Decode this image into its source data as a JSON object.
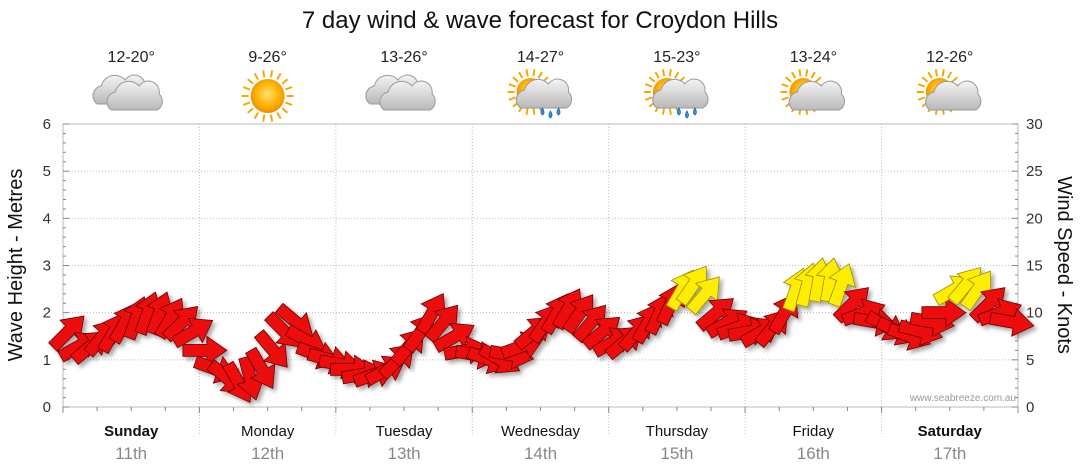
{
  "chart_data": {
    "type": "line",
    "title": "7 day wind & wave forecast for Croydon Hills",
    "y_left_label": "Wave Height - Metres",
    "y_right_label": "Wind Speed - Knots",
    "y_left_range": [
      0,
      6
    ],
    "y_right_range": [
      0,
      30
    ],
    "y_left_ticks": [
      "0",
      "1",
      "2",
      "3",
      "4",
      "5",
      "6"
    ],
    "y_right_ticks": [
      "0",
      "5",
      "10",
      "15",
      "20",
      "25",
      "30"
    ],
    "grid": true,
    "credit": "www.seabreeze.com.au",
    "days": [
      {
        "name": "Sunday",
        "date": "11th",
        "temp": "12-20°",
        "icon": "cloudy-icon",
        "bold": true
      },
      {
        "name": "Monday",
        "date": "12th",
        "temp": "9-26°",
        "icon": "sunny-icon",
        "bold": false
      },
      {
        "name": "Tuesday",
        "date": "13th",
        "temp": "13-26°",
        "icon": "cloudy-icon",
        "bold": false
      },
      {
        "name": "Wednesday",
        "date": "14th",
        "temp": "14-27°",
        "icon": "partly-cloudy-rain-icon",
        "bold": false
      },
      {
        "name": "Thursday",
        "date": "15th",
        "temp": "15-23°",
        "icon": "partly-cloudy-rain-icon",
        "bold": false
      },
      {
        "name": "Friday",
        "date": "16th",
        "temp": "13-24°",
        "icon": "partly-cloudy-icon",
        "bold": false
      },
      {
        "name": "Saturday",
        "date": "17th",
        "temp": "12-26°",
        "icon": "partly-cloudy-icon",
        "bold": true
      }
    ],
    "series": [
      {
        "name": "Wind Speed - Knots",
        "speed_unit": "knots",
        "color_low": "#ee1111",
        "color_high": "#ffee00",
        "high_threshold_knots": 12,
        "day_fraction": [
          0.0,
          0.083,
          0.167,
          0.25,
          0.333,
          0.417,
          0.5,
          0.583,
          0.667,
          0.75,
          0.833,
          0.917,
          1.0,
          1.083,
          1.167,
          1.25,
          1.333,
          1.417,
          1.5,
          1.583,
          1.667,
          1.75,
          1.833,
          1.917,
          2.0,
          2.083,
          2.167,
          2.25,
          2.333,
          2.417,
          2.5,
          2.583,
          2.667,
          2.75,
          2.833,
          2.917,
          3.0,
          3.083,
          3.167,
          3.25,
          3.333,
          3.417,
          3.5,
          3.583,
          3.667,
          3.75,
          3.833,
          3.917,
          4.0,
          4.083,
          4.167,
          4.25,
          4.333,
          4.417,
          4.5,
          4.583,
          4.667,
          4.75,
          4.833,
          4.917,
          5.0,
          5.083,
          5.167,
          5.25,
          5.333,
          5.417,
          5.5,
          5.583,
          5.667,
          5.75,
          5.833,
          5.917,
          6.0,
          6.083,
          6.167,
          6.25,
          6.333,
          6.417,
          6.5,
          6.583,
          6.667,
          6.75,
          6.833,
          6.917
        ],
        "values": [
          8,
          6.5,
          6.5,
          7.5,
          8,
          9,
          9.5,
          10,
          10,
          9.5,
          9,
          8,
          6,
          4,
          3,
          2.5,
          3,
          4,
          6,
          8,
          9,
          7,
          5.5,
          5,
          4.5,
          4,
          3.5,
          3.5,
          4,
          5,
          6.5,
          8,
          10,
          9,
          7.5,
          6,
          5.5,
          5,
          5,
          5.5,
          6.5,
          8,
          9,
          10,
          10.5,
          10,
          9,
          8,
          7,
          7,
          8,
          9,
          10,
          11,
          12.5,
          13,
          12,
          10,
          9,
          8.5,
          8,
          8,
          8.5,
          10,
          12.5,
          13,
          13.5,
          13.5,
          13,
          11,
          10,
          9,
          8.5,
          8,
          7.5,
          8,
          9,
          10,
          12.5,
          13,
          12.5,
          11,
          10,
          9
        ],
        "direction_deg": [
          225,
          240,
          230,
          220,
          210,
          210,
          200,
          200,
          200,
          210,
          225,
          240,
          270,
          290,
          310,
          330,
          345,
          330,
          320,
          315,
          310,
          300,
          290,
          285,
          280,
          270,
          260,
          250,
          240,
          225,
          220,
          215,
          210,
          220,
          240,
          260,
          280,
          290,
          300,
          280,
          250,
          230,
          215,
          210,
          210,
          215,
          220,
          230,
          240,
          230,
          220,
          210,
          205,
          205,
          210,
          215,
          220,
          230,
          240,
          250,
          260,
          240,
          220,
          210,
          200,
          195,
          190,
          190,
          200,
          225,
          250,
          280,
          300,
          295,
          290,
          285,
          280,
          270,
          240,
          220,
          215,
          225,
          250,
          280
        ]
      }
    ]
  }
}
